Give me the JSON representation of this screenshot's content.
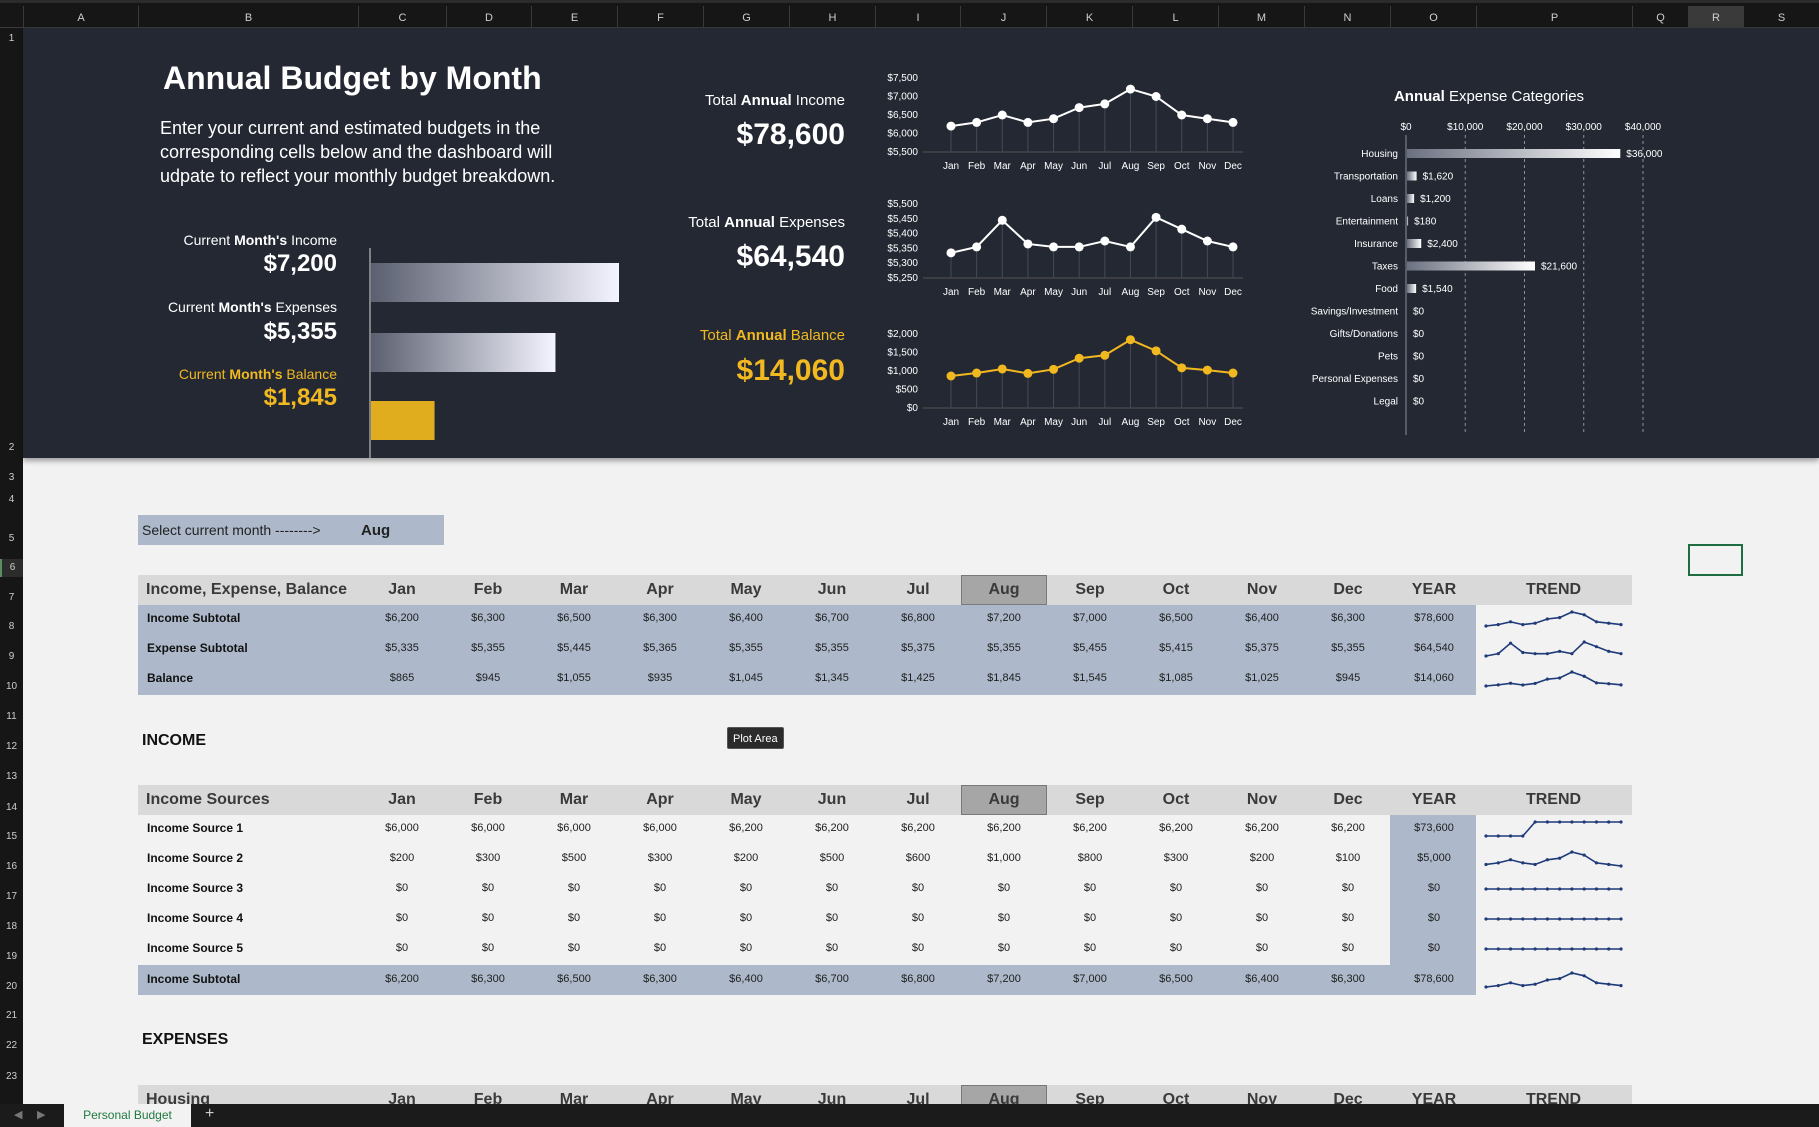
{
  "sheet": {
    "columns": [
      "A",
      "B",
      "C",
      "D",
      "E",
      "F",
      "G",
      "H",
      "I",
      "J",
      "K",
      "L",
      "M",
      "N",
      "O",
      "P",
      "Q",
      "R",
      "S"
    ],
    "rows": [
      "1",
      "2",
      "3",
      "4",
      "5",
      "6",
      "7",
      "8",
      "9",
      "10",
      "11",
      "12",
      "13",
      "14",
      "15",
      "16",
      "17",
      "18",
      "19",
      "20",
      "21",
      "22",
      "23"
    ],
    "selected_column": "R",
    "selected_row": "6",
    "tab_name": "Personal Budget",
    "add_tab_symbol": "+",
    "tooltip": "Plot Area"
  },
  "dashboard": {
    "title": "Annual Budget by Month",
    "description": "Enter your current and estimated budgets in the corresponding cells below and the dashboard will udpate to reflect your monthly budget breakdown.",
    "current": {
      "income_label": [
        "Current ",
        "Month's",
        " Income"
      ],
      "income_value": "$7,200",
      "expenses_label": [
        "Current ",
        "Month's",
        " Expenses"
      ],
      "expenses_value": "$5,355",
      "balance_label": [
        "Current ",
        "Month's",
        " Balance"
      ],
      "balance_value": "$1,845"
    },
    "totals": {
      "income_label": [
        "Total ",
        "Annual",
        " Income"
      ],
      "income_value": "$78,600",
      "expenses_label": [
        "Total ",
        "Annual",
        " Expenses"
      ],
      "expenses_value": "$64,540",
      "balance_label": [
        "Total ",
        "Annual",
        " Balance"
      ],
      "balance_value": "$14,060"
    },
    "categories_title": [
      "Annual",
      " Expense Categories"
    ]
  },
  "chart_data": [
    {
      "type": "bar",
      "orientation": "horizontal",
      "categories": [
        "Current Month's Income",
        "Current Month's Expenses",
        "Current Month's Balance"
      ],
      "values": [
        7200,
        5355,
        1845
      ]
    },
    {
      "type": "line",
      "x": [
        "Jan",
        "Feb",
        "Mar",
        "Apr",
        "May",
        "Jun",
        "Jul",
        "Aug",
        "Sep",
        "Oct",
        "Nov",
        "Dec"
      ],
      "values": [
        6200,
        6300,
        6500,
        6300,
        6400,
        6700,
        6800,
        7200,
        7000,
        6500,
        6400,
        6300
      ],
      "ylim": [
        5500,
        7500
      ],
      "yticks": [
        "$7,500",
        "$7,000",
        "$6,500",
        "$6,000",
        "$5,500"
      ]
    },
    {
      "type": "line",
      "x": [
        "Jan",
        "Feb",
        "Mar",
        "Apr",
        "May",
        "Jun",
        "Jul",
        "Aug",
        "Sep",
        "Oct",
        "Nov",
        "Dec"
      ],
      "values": [
        5335,
        5355,
        5445,
        5365,
        5355,
        5355,
        5375,
        5355,
        5455,
        5415,
        5375,
        5355
      ],
      "ylim": [
        5250,
        5500
      ],
      "yticks": [
        "$5,500",
        "$5,450",
        "$5,400",
        "$5,350",
        "$5,300",
        "$5,250"
      ]
    },
    {
      "type": "line",
      "x": [
        "Jan",
        "Feb",
        "Mar",
        "Apr",
        "May",
        "Jun",
        "Jul",
        "Aug",
        "Sep",
        "Oct",
        "Nov",
        "Dec"
      ],
      "values": [
        865,
        945,
        1055,
        935,
        1045,
        1345,
        1425,
        1845,
        1545,
        1085,
        1025,
        945
      ],
      "ylim": [
        0,
        2000
      ],
      "yticks": [
        "$2,000",
        "$1,500",
        "$1,000",
        "$500",
        "$0"
      ]
    },
    {
      "type": "bar",
      "orientation": "horizontal",
      "categories": [
        "Housing",
        "Transportation",
        "Loans",
        "Entertainment",
        "Insurance",
        "Taxes",
        "Food",
        "Savings/Investment",
        "Gifts/Donations",
        "Pets",
        "Personal Expenses",
        "Legal"
      ],
      "values": [
        36000,
        1620,
        1200,
        180,
        2400,
        21600,
        1540,
        0,
        0,
        0,
        0,
        0
      ],
      "labels": [
        "$36,000",
        "$1,620",
        "$1,200",
        "$180",
        "$2,400",
        "$21,600",
        "$1,540",
        "$0",
        "$0",
        "$0",
        "$0",
        "$0"
      ],
      "xlim": [
        0,
        40000
      ],
      "xticks": [
        "$0",
        "$10,000",
        "$20,000",
        "$30,000",
        "$40,000"
      ]
    }
  ],
  "month_select": {
    "label": "Select current month -------->",
    "value": "Aug"
  },
  "months": [
    "Jan",
    "Feb",
    "Mar",
    "Apr",
    "May",
    "Jun",
    "Jul",
    "Aug",
    "Sep",
    "Oct",
    "Nov",
    "Dec"
  ],
  "year_label": "YEAR",
  "trend_label": "TREND",
  "summary": {
    "header": "Income, Expense, Balance",
    "rows": [
      {
        "label": "Income Subtotal",
        "values": [
          "$6,200",
          "$6,300",
          "$6,500",
          "$6,300",
          "$6,400",
          "$6,700",
          "$6,800",
          "$7,200",
          "$7,000",
          "$6,500",
          "$6,400",
          "$6,300"
        ],
        "year": "$78,600",
        "trend": [
          6200,
          6300,
          6500,
          6300,
          6400,
          6700,
          6800,
          7200,
          7000,
          6500,
          6400,
          6300
        ]
      },
      {
        "label": "Expense Subtotal",
        "values": [
          "$5,335",
          "$5,355",
          "$5,445",
          "$5,365",
          "$5,355",
          "$5,355",
          "$5,375",
          "$5,355",
          "$5,455",
          "$5,415",
          "$5,375",
          "$5,355"
        ],
        "year": "$64,540",
        "trend": [
          5335,
          5355,
          5445,
          5365,
          5355,
          5355,
          5375,
          5355,
          5455,
          5415,
          5375,
          5355
        ]
      },
      {
        "label": "Balance",
        "values": [
          "$865",
          "$945",
          "$1,055",
          "$935",
          "$1,045",
          "$1,345",
          "$1,425",
          "$1,845",
          "$1,545",
          "$1,085",
          "$1,025",
          "$945"
        ],
        "year": "$14,060",
        "trend": [
          865,
          945,
          1055,
          935,
          1045,
          1345,
          1425,
          1845,
          1545,
          1085,
          1025,
          945
        ]
      }
    ]
  },
  "income": {
    "section_title": "INCOME",
    "header": "Income Sources",
    "rows": [
      {
        "label": "Income Source 1",
        "values": [
          "$6,000",
          "$6,000",
          "$6,000",
          "$6,000",
          "$6,200",
          "$6,200",
          "$6,200",
          "$6,200",
          "$6,200",
          "$6,200",
          "$6,200",
          "$6,200"
        ],
        "year": "$73,600",
        "trend": [
          6000,
          6000,
          6000,
          6000,
          6200,
          6200,
          6200,
          6200,
          6200,
          6200,
          6200,
          6200
        ]
      },
      {
        "label": "Income Source 2",
        "values": [
          "$200",
          "$300",
          "$500",
          "$300",
          "$200",
          "$500",
          "$600",
          "$1,000",
          "$800",
          "$300",
          "$200",
          "$100"
        ],
        "year": "$5,000",
        "trend": [
          200,
          300,
          500,
          300,
          200,
          500,
          600,
          1000,
          800,
          300,
          200,
          100
        ]
      },
      {
        "label": "Income Source 3",
        "values": [
          "$0",
          "$0",
          "$0",
          "$0",
          "$0",
          "$0",
          "$0",
          "$0",
          "$0",
          "$0",
          "$0",
          "$0"
        ],
        "year": "$0",
        "trend": [
          0,
          0,
          0,
          0,
          0,
          0,
          0,
          0,
          0,
          0,
          0,
          0
        ]
      },
      {
        "label": "Income Source 4",
        "values": [
          "$0",
          "$0",
          "$0",
          "$0",
          "$0",
          "$0",
          "$0",
          "$0",
          "$0",
          "$0",
          "$0",
          "$0"
        ],
        "year": "$0",
        "trend": [
          0,
          0,
          0,
          0,
          0,
          0,
          0,
          0,
          0,
          0,
          0,
          0
        ]
      },
      {
        "label": "Income Source 5",
        "values": [
          "$0",
          "$0",
          "$0",
          "$0",
          "$0",
          "$0",
          "$0",
          "$0",
          "$0",
          "$0",
          "$0",
          "$0"
        ],
        "year": "$0",
        "trend": [
          0,
          0,
          0,
          0,
          0,
          0,
          0,
          0,
          0,
          0,
          0,
          0
        ]
      }
    ],
    "subtotal": {
      "label": "Income Subtotal",
      "values": [
        "$6,200",
        "$6,300",
        "$6,500",
        "$6,300",
        "$6,400",
        "$6,700",
        "$6,800",
        "$7,200",
        "$7,000",
        "$6,500",
        "$6,400",
        "$6,300"
      ],
      "year": "$78,600",
      "trend": [
        6200,
        6300,
        6500,
        6300,
        6400,
        6700,
        6800,
        7200,
        7000,
        6500,
        6400,
        6300
      ]
    }
  },
  "expenses": {
    "section_title": "EXPENSES",
    "header": "Housing"
  }
}
